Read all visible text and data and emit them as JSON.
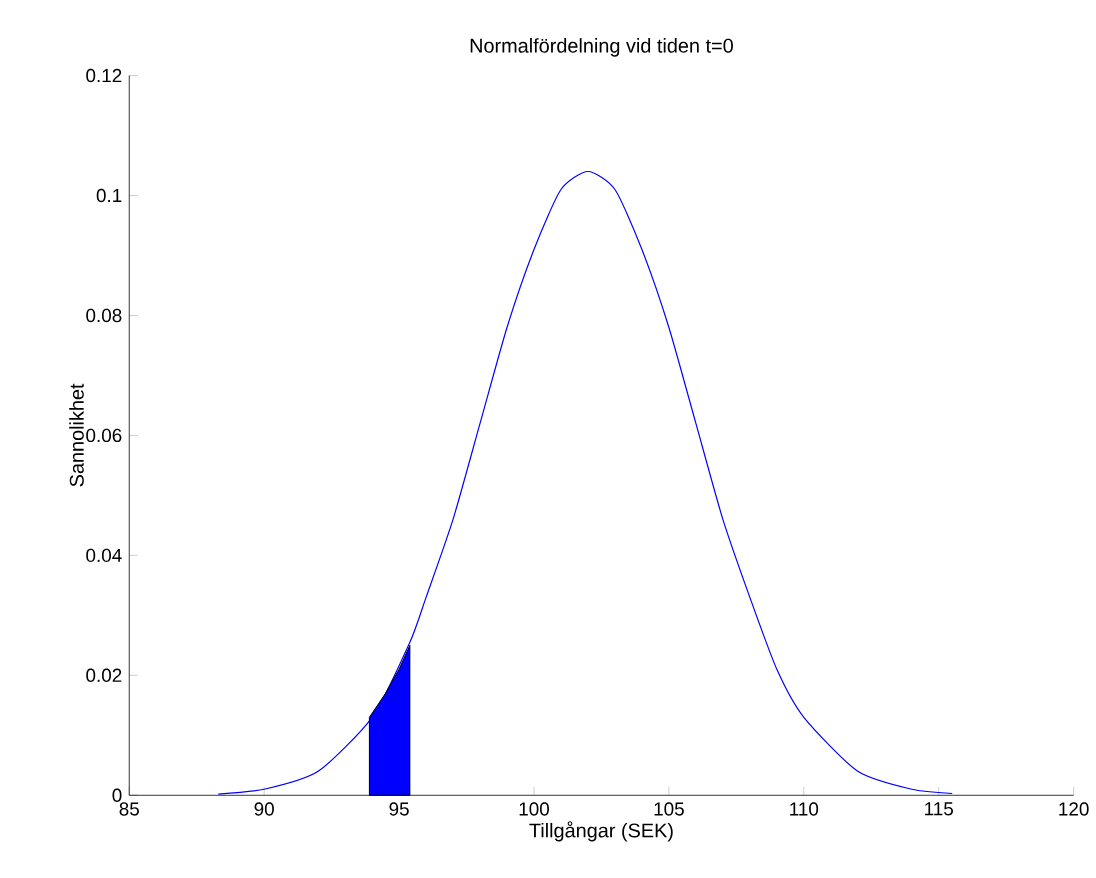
{
  "chart_data": {
    "type": "line",
    "title": "Normalfördelning vid tiden t=0",
    "xlabel": "Tillgångar (SEK)",
    "ylabel": "Sannolikhet",
    "series": [
      {
        "color": "#0000ff",
        "x": [
          88.3,
          90,
          92,
          94,
          95.4,
          96,
          97,
          98,
          99,
          100,
          101,
          102,
          103,
          104,
          105,
          106,
          107,
          108,
          109,
          110,
          112,
          114,
          115.5
        ],
        "values": [
          0.0002,
          0.001,
          0.004,
          0.013,
          0.0255,
          0.033,
          0.046,
          0.062,
          0.078,
          0.091,
          0.101,
          0.104,
          0.101,
          0.091,
          0.078,
          0.062,
          0.046,
          0.033,
          0.021,
          0.013,
          0.004,
          0.001,
          0.0003
        ]
      },
      {
        "type": "area",
        "color": "#0000ff",
        "x": [
          93.9,
          94.5,
          95,
          95.4
        ],
        "values": [
          0.013,
          0.017,
          0.021,
          0.025
        ]
      }
    ],
    "xlim": [
      85,
      120
    ],
    "ylim": [
      0,
      0.12
    ],
    "xticks": [
      85,
      90,
      95,
      100,
      105,
      110,
      115,
      120
    ],
    "yticks": [
      0,
      0.02,
      0.04,
      0.06,
      0.08,
      0.1,
      0.12
    ],
    "grid": false
  }
}
